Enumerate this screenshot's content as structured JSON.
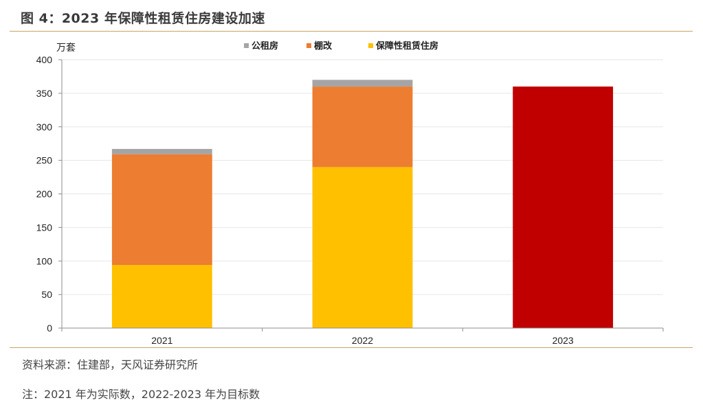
{
  "header": {
    "title": "图 4：2023 年保障性租赁住房建设加速"
  },
  "footer": {
    "source": "资料来源：住建部，天风证券研究所",
    "note": "注：2021 年为实际数，2022-2023 年为目标数"
  },
  "colors": {
    "rule": "#c9a065",
    "grid": "#e6e6e6",
    "axis": "#8c8c8c",
    "highlight_2023": "#c00000"
  },
  "chart_data": {
    "type": "bar",
    "stacked": true,
    "unit_label": "万套",
    "categories": [
      "2021",
      "2022",
      "2023"
    ],
    "series": [
      {
        "name": "保障性租赁住房",
        "color": "#ffc000",
        "values": [
          94,
          240,
          null
        ]
      },
      {
        "name": "棚改",
        "color": "#ed7d31",
        "values": [
          165,
          120,
          null
        ]
      },
      {
        "name": "公租房",
        "color": "#a5a5a5",
        "values": [
          8,
          10,
          null
        ]
      }
    ],
    "total_only": {
      "category": "2023",
      "value": 360,
      "color": "#c00000"
    },
    "legend_order": [
      "公租房",
      "棚改",
      "保障性租赁住房"
    ],
    "legend_position": "top-center",
    "ylim": [
      0,
      400
    ],
    "yticks": [
      0,
      50,
      100,
      150,
      200,
      250,
      300,
      350,
      400
    ],
    "grid": true
  }
}
